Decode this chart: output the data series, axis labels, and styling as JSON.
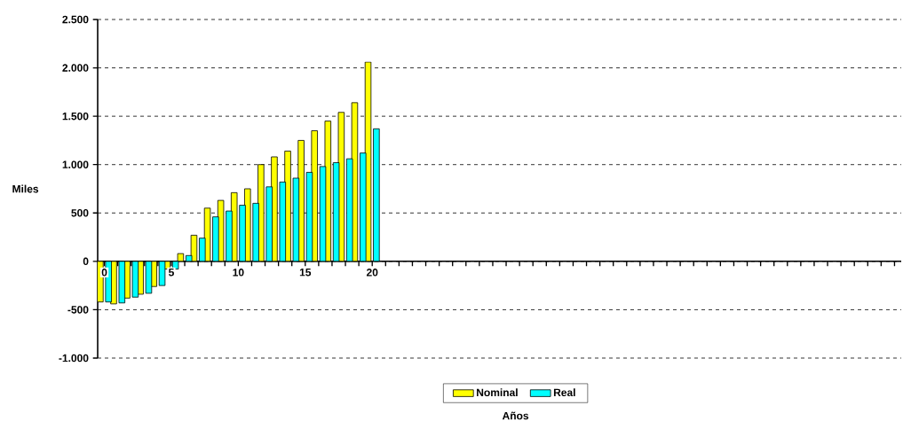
{
  "chart_data": {
    "type": "bar",
    "xlabel": "Años",
    "ylabel": "Miles",
    "categories": [
      "0",
      null,
      null,
      null,
      null,
      "5",
      null,
      null,
      null,
      null,
      "10",
      null,
      null,
      null,
      null,
      "15",
      null,
      null,
      null,
      null,
      "20",
      null,
      null,
      null,
      null,
      null,
      null,
      null,
      null,
      null,
      null,
      null,
      null,
      null,
      null,
      null,
      null,
      null,
      null,
      null,
      null,
      null,
      null,
      null,
      null,
      null,
      null,
      null,
      null,
      null,
      null,
      null,
      null,
      null,
      null,
      null,
      null,
      null,
      null,
      null
    ],
    "series": [
      {
        "name": "Nominal",
        "color": "#ffff00",
        "values": [
          -420,
          -440,
          -380,
          -340,
          -260,
          -80,
          80,
          270,
          550,
          630,
          710,
          750,
          1000,
          1080,
          1140,
          1250,
          1350,
          1450,
          1540,
          1640,
          2060,
          null,
          null,
          null,
          null,
          null,
          null,
          null,
          null,
          null,
          null,
          null,
          null,
          null,
          null,
          null,
          null,
          null,
          null,
          null,
          null,
          null,
          null,
          null,
          null,
          null,
          null,
          null,
          null,
          null,
          null,
          null,
          null,
          null,
          null,
          null,
          null,
          null,
          null,
          null
        ]
      },
      {
        "name": "Real",
        "color": "#00ffff",
        "values": [
          -420,
          -430,
          -370,
          -330,
          -250,
          -80,
          60,
          240,
          460,
          520,
          580,
          600,
          770,
          820,
          860,
          920,
          980,
          1020,
          1060,
          1120,
          1370,
          null,
          null,
          null,
          null,
          null,
          null,
          null,
          null,
          null,
          null,
          null,
          null,
          null,
          null,
          null,
          null,
          null,
          null,
          null,
          null,
          null,
          null,
          null,
          null,
          null,
          null,
          null,
          null,
          null,
          null,
          null,
          null,
          null,
          null,
          null,
          null,
          null,
          null,
          null
        ]
      }
    ],
    "ylim": [
      -1000,
      2500
    ],
    "yticks": [
      {
        "value": -1000,
        "label": "-1.000"
      },
      {
        "value": -500,
        "label": "-500"
      },
      0,
      500,
      {
        "value": 1000,
        "label": "1.000"
      },
      {
        "value": 1500,
        "label": "1.500"
      },
      {
        "value": 2000,
        "label": "2.000"
      },
      {
        "value": 2500,
        "label": "2.500"
      }
    ],
    "grid": "y",
    "legend": "bottom"
  }
}
